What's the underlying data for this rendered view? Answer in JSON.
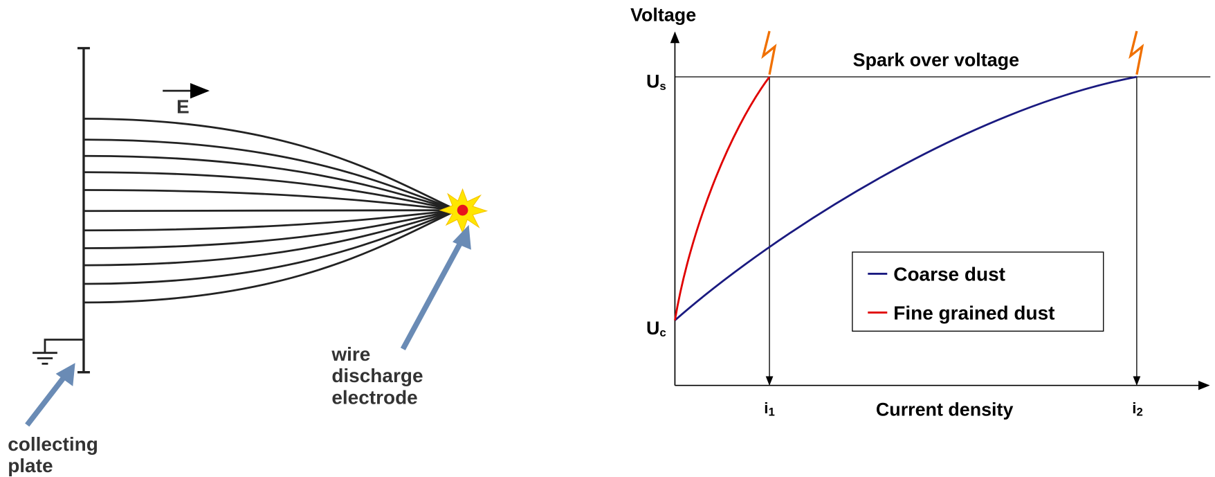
{
  "left_diagram": {
    "field_label": "E",
    "electrode_label": [
      "wire",
      "discharge",
      "electrode"
    ],
    "plate_label": [
      "collecting",
      "plate"
    ]
  },
  "right_chart": {
    "y_axis_label": "Voltage",
    "x_axis_label": "Current density",
    "spark_label": "Spark over voltage",
    "us": {
      "main": "U",
      "sub": "s"
    },
    "uc": {
      "main": "U",
      "sub": "c"
    },
    "i1": {
      "main": "i",
      "sub": "1"
    },
    "i2": {
      "main": "i",
      "sub": "2"
    },
    "legend": [
      {
        "name": "Coarse dust",
        "color": "#1a1a80"
      },
      {
        "name": "Fine grained dust",
        "color": "#e00000"
      }
    ]
  }
}
